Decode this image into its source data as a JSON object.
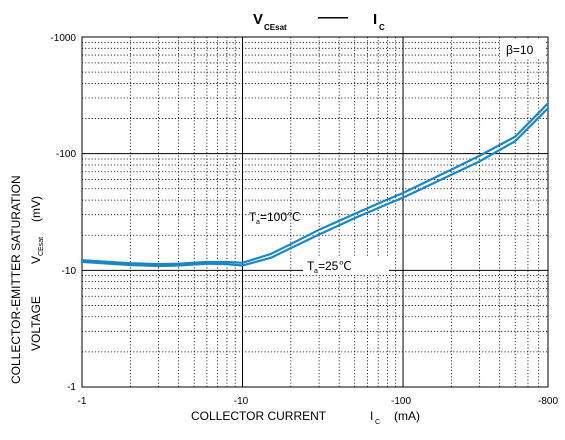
{
  "chart_data": {
    "type": "line",
    "title": {
      "left_main": "V",
      "left_sub": "CEsat",
      "dash": "——",
      "right_main": "I",
      "right_sub": "C"
    },
    "xlabel": {
      "main": "COLLECTOR CURRENT",
      "symbol": "I",
      "sub": "C",
      "unit": "(mA)"
    },
    "ylabel": {
      "line1": "COLLECTOR-EMITTER SATURATION",
      "line2_main": "VOLTAGE",
      "symbol": "V",
      "sub": "CEsat",
      "unit": "(mV)"
    },
    "x_scale": "log",
    "y_scale": "log",
    "xlim": [
      -1,
      -800
    ],
    "ylim": [
      -1,
      -1000
    ],
    "x_ticks": [
      "-1",
      "-10",
      "-100",
      "-800"
    ],
    "y_ticks": [
      "-1",
      "-10",
      "-100",
      "-1000"
    ],
    "grid": true,
    "beta_label": "β=10",
    "series": [
      {
        "annotation_main": "T",
        "annotation_sub": "a",
        "annotation_rest": "=100℃",
        "color": "#1a86c8",
        "x": [
          -1,
          -2,
          -3,
          -4,
          -6,
          -8,
          -10,
          -15,
          -20,
          -30,
          -50,
          -80,
          -100,
          -200,
          -300,
          -500,
          -800
        ],
        "y": [
          -12.2,
          -11.5,
          -11.3,
          -11.4,
          -11.8,
          -11.8,
          -11.6,
          -13.8,
          -16.8,
          -22.3,
          -30.5,
          -40.5,
          -46,
          -73,
          -96,
          -140,
          -270
        ]
      },
      {
        "annotation_main": "T",
        "annotation_sub": "a",
        "annotation_rest": "=25℃",
        "color": "#1a86c8",
        "x": [
          -1,
          -2,
          -3,
          -4,
          -6,
          -8,
          -10,
          -15,
          -20,
          -30,
          -50,
          -80,
          -100,
          -200,
          -300,
          -500,
          -800
        ],
        "y": [
          -11.8,
          -11.1,
          -10.9,
          -11.0,
          -11.4,
          -11.3,
          -11.0,
          -12.8,
          -15.5,
          -20.3,
          -28.0,
          -37.0,
          -42.0,
          -66,
          -86,
          -128,
          -245
        ]
      }
    ]
  }
}
